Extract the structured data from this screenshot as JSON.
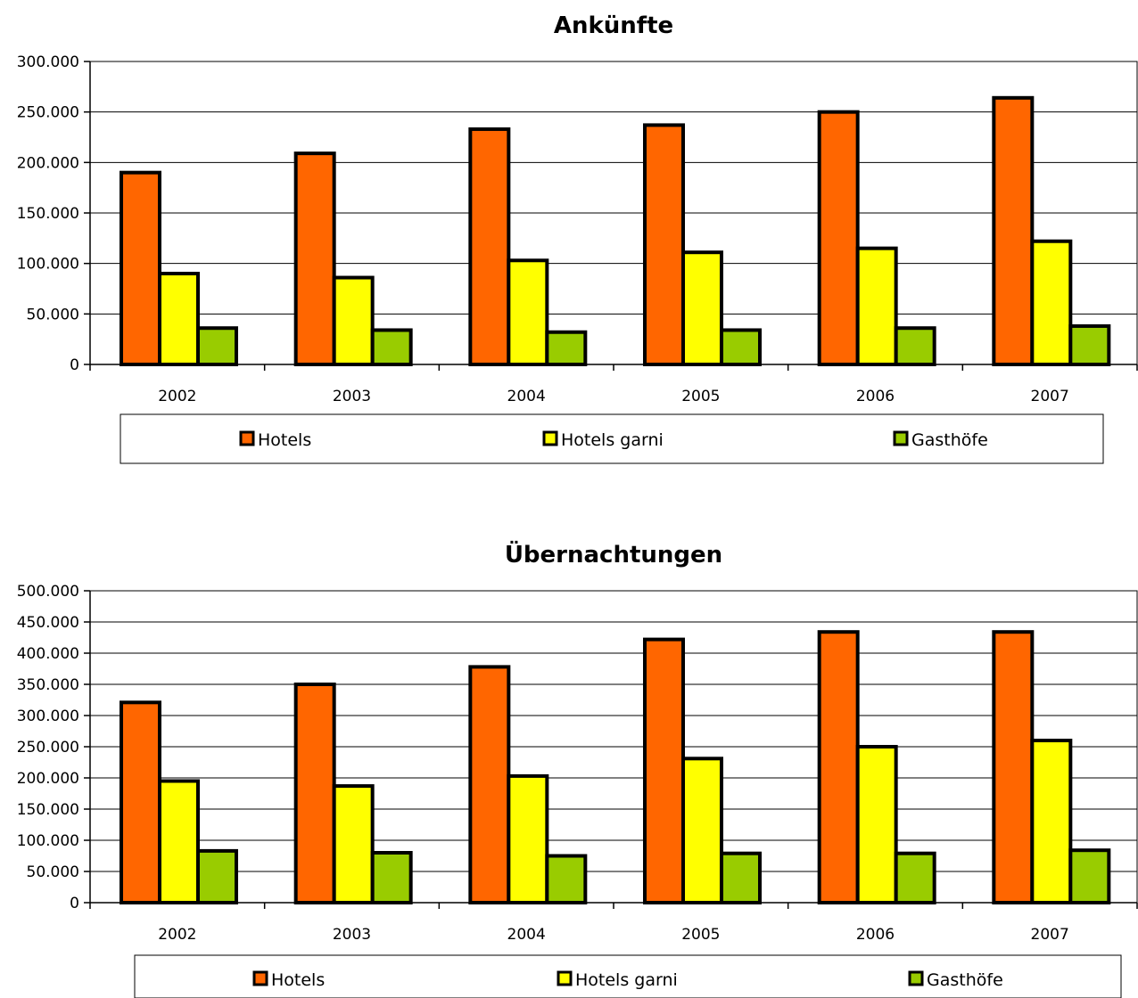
{
  "chart_data": [
    {
      "type": "bar",
      "title": "Ankünfte",
      "categories": [
        "2002",
        "2003",
        "2004",
        "2005",
        "2006",
        "2007"
      ],
      "ylim": [
        0,
        300000
      ],
      "yticks": [
        "0",
        "50.000",
        "100.000",
        "150.000",
        "200.000",
        "250.000",
        "300.000"
      ],
      "grid": true,
      "legend_position": "bottom",
      "series": [
        {
          "name": "Hotels",
          "color": "#FF6600",
          "values": [
            190000,
            209000,
            233000,
            237000,
            250000,
            264000
          ]
        },
        {
          "name": "Hotels garni",
          "color": "#FFFF00",
          "values": [
            90000,
            86000,
            103000,
            111000,
            115000,
            122000
          ]
        },
        {
          "name": "Gasthöfe",
          "color": "#99CC00",
          "values": [
            36000,
            34000,
            32000,
            34000,
            36000,
            38000
          ]
        }
      ]
    },
    {
      "type": "bar",
      "title": "Übernachtungen",
      "categories": [
        "2002",
        "2003",
        "2004",
        "2005",
        "2006",
        "2007"
      ],
      "ylim": [
        0,
        500000
      ],
      "yticks": [
        "0",
        "50.000",
        "100.000",
        "150.000",
        "200.000",
        "250.000",
        "300.000",
        "350.000",
        "400.000",
        "450.000",
        "500.000"
      ],
      "grid": true,
      "legend_position": "bottom",
      "series": [
        {
          "name": "Hotels",
          "color": "#FF6600",
          "values": [
            321000,
            350000,
            378000,
            422000,
            434000,
            434000
          ]
        },
        {
          "name": "Hotels garni",
          "color": "#FFFF00",
          "values": [
            195000,
            187000,
            203000,
            231000,
            250000,
            260000
          ]
        },
        {
          "name": "Gasthöfe",
          "color": "#99CC00",
          "values": [
            83000,
            80000,
            75000,
            79000,
            79000,
            84000
          ]
        }
      ]
    }
  ]
}
